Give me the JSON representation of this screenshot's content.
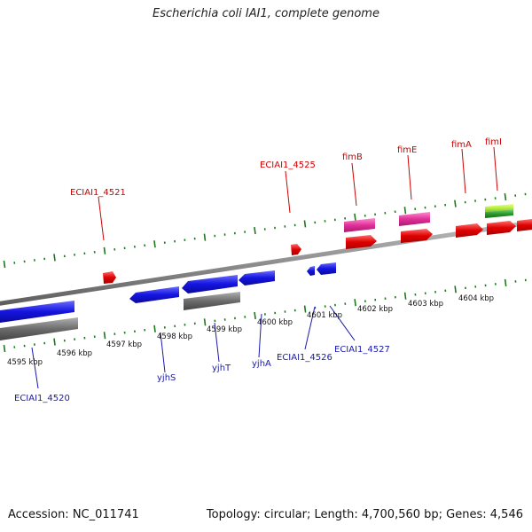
{
  "title": "Escherichia coli IAI1, complete genome",
  "footer": {
    "accession_text": "Accession: NC_011741",
    "stats_text": "Topology: circular; Length: 4,700,560 bp; Genes: 4,546"
  },
  "colors": {
    "backbone": "#8a8a8a",
    "tick_green": "#1b7a1b",
    "red_gene": "#e50000",
    "blue_gene": "#1515e0",
    "gray_feature": "#6a6a6a",
    "pink_feature": "#e0309a",
    "green_feature": "#2c9c2c",
    "lime_feature": "#b8f040",
    "label_top": "#cc0000",
    "label_bottom": "#1a1aa8"
  },
  "scale": {
    "labels": [
      "4595 kbp",
      "4596 kbp",
      "4597 kbp",
      "4598 kbp",
      "4599 kbp",
      "4600 kbp",
      "4601 kbp",
      "4602 kbp",
      "4603 kbp",
      "4604 kbp"
    ]
  },
  "top_labels": [
    "ECIAI1_4521",
    "ECIAI1_4525",
    "fimB",
    "fimE",
    "fimA",
    "fimI"
  ],
  "bottom_labels": [
    "ECIAI1_4520",
    "yjhS",
    "yjhT",
    "yjhA",
    "ECIAI1_4526",
    "ECIAI1_4527"
  ]
}
